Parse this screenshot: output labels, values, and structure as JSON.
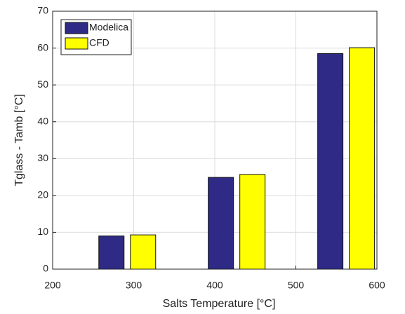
{
  "chart_data": {
    "type": "bar",
    "xlabel": "Salts Temperature [°C]",
    "ylabel": "Tglass - Tamb [°C]",
    "x": [
      292,
      427,
      562
    ],
    "series": [
      {
        "name": "Modelica",
        "color": "#2e2a86",
        "values": [
          9.0,
          24.9,
          58.5
        ]
      },
      {
        "name": "CFD",
        "color": "#ffff00",
        "values": [
          9.3,
          25.7,
          60.1
        ]
      }
    ],
    "xlim": [
      200,
      600
    ],
    "xticks": [
      200,
      300,
      400,
      500,
      600
    ],
    "ylim": [
      0,
      70
    ],
    "yticks": [
      0,
      10,
      20,
      30,
      40,
      50,
      60,
      70
    ],
    "grid": true,
    "legend": "northwest"
  }
}
